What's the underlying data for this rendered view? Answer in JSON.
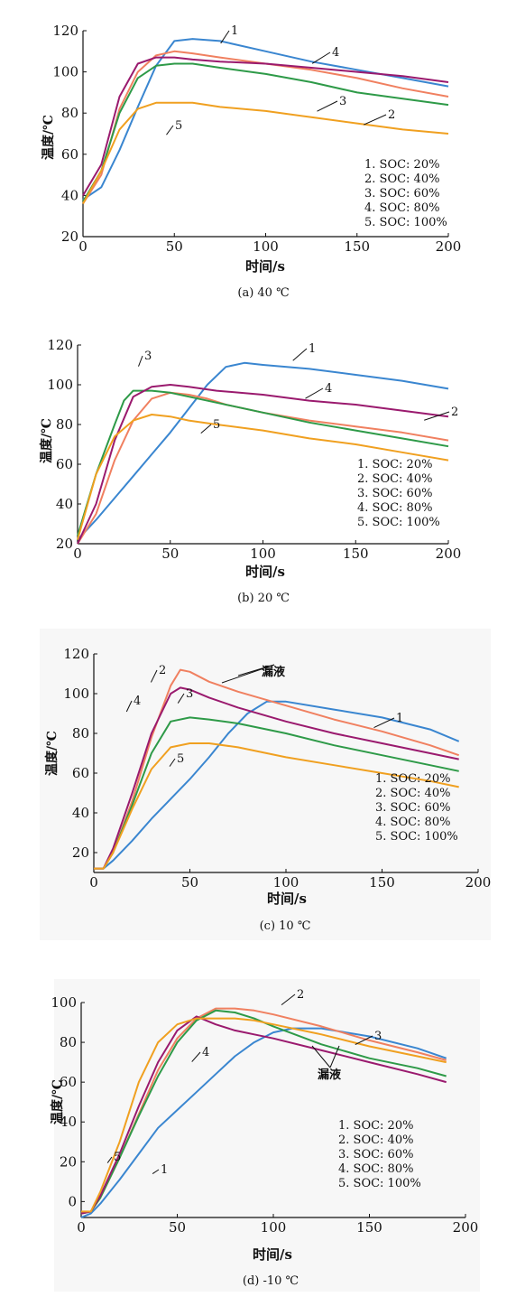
{
  "charts": [
    {
      "caption": "(a) 40 ℃",
      "ylabel": "温度/℃",
      "xlabel": "时间/s",
      "xticks": [
        0,
        50,
        100,
        150,
        200
      ],
      "yticks": [
        20,
        40,
        60,
        80,
        100,
        120
      ],
      "legend": [
        "1. SOC: 20%",
        "2. SOC: 40%",
        "3. SOC: 60%",
        "4. SOC: 80%",
        "5. SOC: 100%"
      ],
      "curve_labels": [
        "1",
        "4",
        "3",
        "2",
        "5"
      ]
    },
    {
      "caption": "(b) 20 ℃",
      "ylabel": "温度/℃",
      "xlabel": "时间/s",
      "xticks": [
        0,
        50,
        100,
        150,
        200
      ],
      "yticks": [
        20,
        40,
        60,
        80,
        100,
        120
      ],
      "legend": [
        "1. SOC: 20%",
        "2. SOC: 40%",
        "3. SOC: 60%",
        "4. SOC: 80%",
        "5. SOC: 100%"
      ],
      "curve_labels": [
        "1",
        "2",
        "3",
        "4",
        "5"
      ]
    },
    {
      "caption": "(c) 10 ℃",
      "ylabel": "温度/℃",
      "xlabel": "时间/s",
      "xticks": [
        0,
        50,
        100,
        150,
        200
      ],
      "yticks": [
        20,
        40,
        60,
        80,
        100,
        120
      ],
      "legend": [
        "1. SOC: 20%",
        "2. SOC: 40%",
        "3. SOC: 60%",
        "4. SOC: 80%",
        "5. SOC: 100%"
      ],
      "curve_labels": [
        "2",
        "4",
        "3",
        "5",
        "1"
      ],
      "annotation": "漏液"
    },
    {
      "caption": "(d) -10 ℃",
      "ylabel": "温度/℃",
      "xlabel": "时间/s",
      "xticks": [
        0,
        50,
        100,
        150,
        200
      ],
      "yticks": [
        0,
        20,
        40,
        60,
        80,
        100
      ],
      "legend": [
        "1. SOC: 20%",
        "2. SOC: 40%",
        "3. SOC: 60%",
        "4. SOC: 80%",
        "5. SOC: 100%"
      ],
      "curve_labels": [
        "2",
        "3",
        "5",
        "4",
        "1"
      ],
      "annotation": "漏液"
    }
  ],
  "chart_data": [
    {
      "type": "line",
      "title": "(a) 40 ℃",
      "xlabel": "时间/s",
      "ylabel": "温度/℃",
      "xlim": [
        0,
        200
      ],
      "ylim": [
        20,
        120
      ],
      "series": [
        {
          "name": "1. SOC: 20%",
          "color": "#3a86d0",
          "x": [
            0,
            10,
            20,
            30,
            40,
            50,
            60,
            75,
            100,
            125,
            150,
            175,
            200
          ],
          "y": [
            38,
            44,
            62,
            83,
            103,
            115,
            116,
            115,
            110,
            105,
            101,
            97,
            93
          ]
        },
        {
          "name": "2. SOC: 40%",
          "color": "#f08060",
          "x": [
            0,
            10,
            20,
            30,
            40,
            50,
            60,
            75,
            100,
            125,
            150,
            175,
            200
          ],
          "y": [
            36,
            50,
            82,
            100,
            108,
            110,
            109,
            107,
            104,
            101,
            97,
            92,
            88
          ]
        },
        {
          "name": "3. SOC: 60%",
          "color": "#2e9a48",
          "x": [
            0,
            10,
            20,
            30,
            40,
            50,
            60,
            75,
            100,
            125,
            150,
            175,
            200
          ],
          "y": [
            37,
            52,
            80,
            97,
            103,
            104,
            104,
            102,
            99,
            95,
            90,
            87,
            84
          ]
        },
        {
          "name": "4. SOC: 80%",
          "color": "#9a1a6e",
          "x": [
            0,
            10,
            20,
            30,
            40,
            50,
            60,
            75,
            100,
            125,
            150,
            175,
            200
          ],
          "y": [
            40,
            55,
            88,
            104,
            107,
            107,
            106,
            105,
            104,
            102,
            100,
            98,
            95
          ]
        },
        {
          "name": "5. SOC: 100%",
          "color": "#f0a020",
          "x": [
            0,
            10,
            20,
            30,
            40,
            50,
            60,
            75,
            100,
            125,
            150,
            175,
            200
          ],
          "y": [
            36,
            52,
            72,
            82,
            85,
            85,
            85,
            83,
            81,
            78,
            75,
            72,
            70
          ]
        }
      ]
    },
    {
      "type": "line",
      "title": "(b) 20 ℃",
      "xlabel": "时间/s",
      "ylabel": "温度/℃",
      "xlim": [
        0,
        200
      ],
      "ylim": [
        20,
        120
      ],
      "series": [
        {
          "name": "1. SOC: 20%",
          "color": "#3a86d0",
          "x": [
            0,
            10,
            20,
            30,
            40,
            50,
            60,
            70,
            80,
            90,
            100,
            125,
            150,
            175,
            200
          ],
          "y": [
            22,
            32,
            43,
            54,
            65,
            76,
            88,
            100,
            109,
            111,
            110,
            108,
            105,
            102,
            98
          ]
        },
        {
          "name": "2. SOC: 40%",
          "color": "#f08060",
          "x": [
            0,
            10,
            20,
            30,
            40,
            50,
            60,
            70,
            80,
            100,
            125,
            150,
            175,
            200
          ],
          "y": [
            20,
            35,
            62,
            82,
            93,
            96,
            95,
            93,
            90,
            86,
            82,
            79,
            76,
            72
          ]
        },
        {
          "name": "3. SOC: 60%",
          "color": "#2e9a48",
          "x": [
            0,
            10,
            20,
            25,
            30,
            40,
            50,
            60,
            75,
            100,
            125,
            150,
            175,
            200
          ],
          "y": [
            24,
            55,
            80,
            92,
            97,
            97,
            96,
            94,
            91,
            86,
            81,
            77,
            73,
            69
          ]
        },
        {
          "name": "4. SOC: 80%",
          "color": "#9a1a6e",
          "x": [
            0,
            10,
            20,
            30,
            40,
            50,
            60,
            75,
            100,
            125,
            150,
            175,
            200
          ],
          "y": [
            20,
            40,
            72,
            94,
            99,
            100,
            99,
            97,
            95,
            92,
            90,
            87,
            84
          ]
        },
        {
          "name": "5. SOC: 100%",
          "color": "#f0a020",
          "x": [
            0,
            10,
            20,
            30,
            40,
            50,
            60,
            75,
            100,
            125,
            150,
            175,
            200
          ],
          "y": [
            22,
            55,
            74,
            82,
            85,
            84,
            82,
            80,
            77,
            73,
            70,
            66,
            62
          ]
        }
      ]
    },
    {
      "type": "line",
      "title": "(c) 10 ℃",
      "xlabel": "时间/s",
      "ylabel": "温度/℃",
      "xlim": [
        0,
        200
      ],
      "ylim": [
        10,
        120
      ],
      "series": [
        {
          "name": "1. SOC: 20%",
          "color": "#3a86d0",
          "x": [
            0,
            5,
            10,
            20,
            30,
            40,
            50,
            60,
            70,
            80,
            90,
            100,
            125,
            150,
            175,
            190
          ],
          "y": [
            12,
            12,
            16,
            26,
            37,
            47,
            57,
            68,
            80,
            90,
            96,
            96,
            92,
            88,
            82,
            76
          ]
        },
        {
          "name": "2. SOC: 40%",
          "color": "#f08060",
          "x": [
            0,
            5,
            10,
            20,
            30,
            40,
            45,
            50,
            60,
            75,
            100,
            125,
            150,
            175,
            190
          ],
          "y": [
            12,
            12,
            20,
            46,
            78,
            104,
            112,
            111,
            106,
            101,
            94,
            87,
            81,
            74,
            69
          ]
        },
        {
          "name": "3. SOC: 60%",
          "color": "#2e9a48",
          "x": [
            0,
            5,
            10,
            20,
            30,
            40,
            50,
            60,
            75,
            100,
            125,
            150,
            175,
            190
          ],
          "y": [
            12,
            12,
            20,
            44,
            70,
            86,
            88,
            87,
            85,
            80,
            74,
            69,
            64,
            61
          ]
        },
        {
          "name": "4. SOC: 80%",
          "color": "#9a1a6e",
          "x": [
            0,
            5,
            10,
            20,
            30,
            40,
            45,
            50,
            60,
            75,
            100,
            125,
            150,
            175,
            190
          ],
          "y": [
            12,
            12,
            22,
            50,
            80,
            100,
            103,
            102,
            98,
            93,
            86,
            80,
            75,
            70,
            67
          ]
        },
        {
          "name": "5. SOC: 100%",
          "color": "#f0a020",
          "x": [
            0,
            5,
            10,
            20,
            30,
            40,
            50,
            60,
            75,
            100,
            125,
            150,
            175,
            190
          ],
          "y": [
            12,
            12,
            20,
            42,
            62,
            73,
            75,
            75,
            73,
            68,
            64,
            60,
            56,
            53
          ]
        }
      ]
    },
    {
      "type": "line",
      "title": "(d) -10 ℃",
      "xlabel": "时间/s",
      "ylabel": "温度/℃",
      "xlim": [
        0,
        200
      ],
      "ylim": [
        -8,
        100
      ],
      "series": [
        {
          "name": "1. SOC: 20%",
          "color": "#3a86d0",
          "x": [
            0,
            5,
            10,
            20,
            30,
            40,
            50,
            60,
            70,
            80,
            90,
            100,
            110,
            125,
            150,
            175,
            190
          ],
          "y": [
            -8,
            -6,
            -1,
            11,
            24,
            37,
            46,
            55,
            64,
            73,
            80,
            85,
            87,
            87,
            83,
            77,
            72
          ]
        },
        {
          "name": "2. SOC: 40%",
          "color": "#f08060",
          "x": [
            0,
            5,
            10,
            20,
            30,
            40,
            50,
            60,
            70,
            80,
            90,
            100,
            125,
            150,
            175,
            190
          ],
          "y": [
            -6,
            -5,
            2,
            22,
            44,
            66,
            82,
            92,
            97,
            97,
            96,
            94,
            88,
            81,
            75,
            71
          ]
        },
        {
          "name": "3. SOC: 60%",
          "color": "#2e9a48",
          "x": [
            0,
            5,
            10,
            20,
            30,
            40,
            50,
            60,
            70,
            80,
            90,
            100,
            125,
            150,
            175,
            190
          ],
          "y": [
            -6,
            -5,
            2,
            22,
            43,
            63,
            80,
            91,
            96,
            95,
            92,
            88,
            79,
            72,
            67,
            63
          ]
        },
        {
          "name": "4. SOC: 80%",
          "color": "#9a1a6e",
          "x": [
            0,
            5,
            10,
            20,
            30,
            40,
            50,
            60,
            70,
            80,
            90,
            100,
            125,
            150,
            175,
            190
          ],
          "y": [
            -6,
            -5,
            3,
            24,
            48,
            70,
            86,
            93,
            89,
            86,
            84,
            82,
            76,
            70,
            64,
            60
          ]
        },
        {
          "name": "5. SOC: 100%",
          "color": "#f0a020",
          "x": [
            0,
            5,
            10,
            20,
            30,
            40,
            50,
            60,
            70,
            80,
            90,
            100,
            125,
            150,
            175,
            190
          ],
          "y": [
            -5,
            -5,
            5,
            30,
            60,
            80,
            89,
            92,
            92,
            92,
            91,
            89,
            84,
            78,
            73,
            70
          ]
        }
      ]
    }
  ]
}
